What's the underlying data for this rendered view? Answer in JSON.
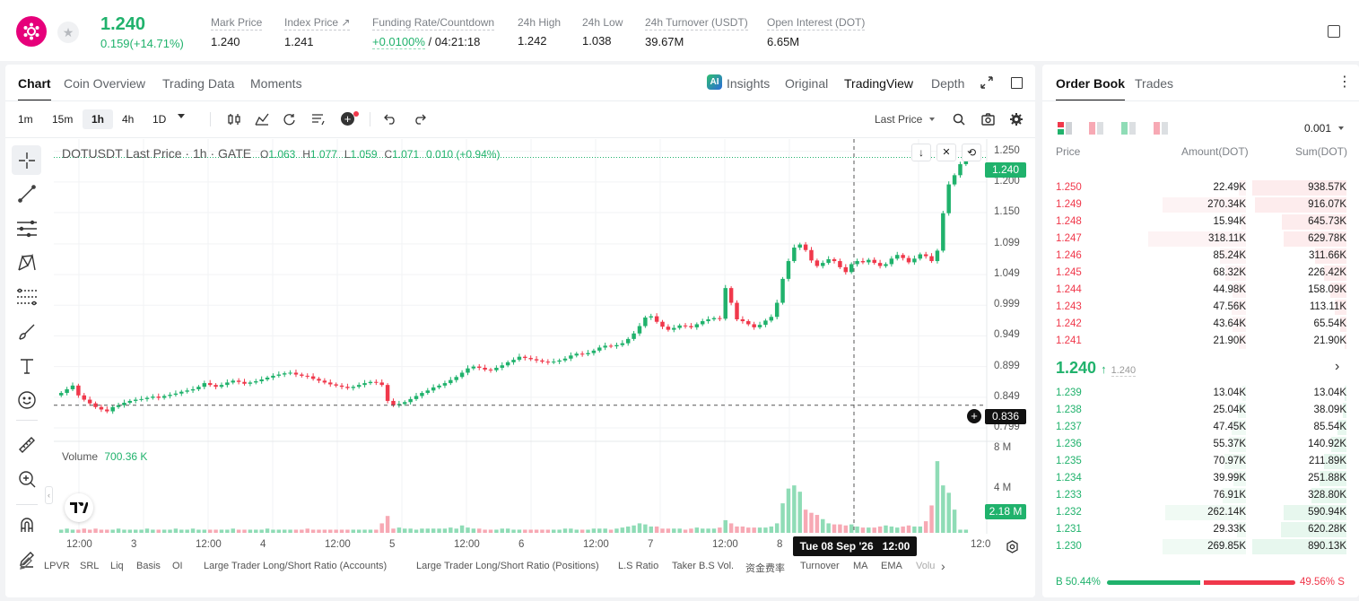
{
  "ticker": {
    "price": "1.240",
    "change": "0.159(+14.71%)"
  },
  "stats": [
    {
      "label": "Mark Price",
      "value": "1.240"
    },
    {
      "label": "Index Price ↗",
      "value": "1.241"
    },
    {
      "label": "Funding Rate/Countdown",
      "value_a": "+0.0100%",
      "value_b": "/ 04:21:18"
    },
    {
      "label": "24h High",
      "value": "1.242"
    },
    {
      "label": "24h Low",
      "value": "1.038"
    },
    {
      "label": "24h Turnover (USDT)",
      "value": "39.67M"
    },
    {
      "label": "Open Interest (DOT)",
      "value": "6.65M"
    }
  ],
  "chart_tabs": [
    "Chart",
    "Coin Overview",
    "Trading Data",
    "Moments"
  ],
  "view_tabs": {
    "insights": "Insights",
    "original": "Original",
    "tradingview": "TradingView",
    "depth": "Depth"
  },
  "intervals": [
    "1m",
    "15m",
    "1h",
    "4h",
    "1D"
  ],
  "active_interval": "1h",
  "price_type": "Last Price",
  "legend": {
    "title": "DOTUSDT Last Price · 1h · GATE",
    "o_label": "O",
    "o": "1.063",
    "h_label": "H",
    "h": "1.077",
    "l_label": "L",
    "l": "1.059",
    "c_label": "C",
    "c": "1.071",
    "chg": "0.010 (+0.94%)"
  },
  "volume_legend": {
    "label": "Volume",
    "value": "700.36 K"
  },
  "price_axis": [
    "1.250",
    "1.200",
    "1.150",
    "1.099",
    "1.049",
    "0.999",
    "0.949",
    "0.899",
    "0.849",
    "0.799"
  ],
  "volume_axis": [
    "8 M",
    "4 M"
  ],
  "time_axis": [
    "12:00",
    "3",
    "12:00",
    "4",
    "12:00",
    "5",
    "12:00",
    "6",
    "12:00",
    "7",
    "12:00",
    "8",
    "9",
    "12:0"
  ],
  "last_price_tag": "1.240",
  "crosshair_tag": "0.836",
  "volume_tag": "2.18 M",
  "crosshair_time": "Tue 08 Sep '26   12:00",
  "indicators": [
    "LPVR",
    "SRL",
    "Liq",
    "Basis",
    "OI",
    "Large Trader Long/Short Ratio (Accounts)",
    "Large Trader Long/Short Ratio (Positions)",
    "L.S Ratio",
    "Taker B.S Vol.",
    "资金费率",
    "Turnover",
    "MA",
    "EMA",
    "Volu"
  ],
  "order_book": {
    "tabs": [
      "Order Book",
      "Trades"
    ],
    "precision": "0.001",
    "headers": {
      "price": "Price",
      "amount": "Amount(DOT)",
      "sum": "Sum(DOT)"
    },
    "asks": [
      {
        "price": "1.250",
        "amount": "22.49K",
        "sum": "938.57K",
        "depth": 1.0
      },
      {
        "price": "1.249",
        "amount": "270.34K",
        "sum": "916.07K",
        "depth": 0.976
      },
      {
        "price": "1.248",
        "amount": "15.94K",
        "sum": "645.73K",
        "depth": 0.688
      },
      {
        "price": "1.247",
        "amount": "318.11K",
        "sum": "629.78K",
        "depth": 0.671
      },
      {
        "price": "1.246",
        "amount": "85.24K",
        "sum": "311.66K",
        "depth": 0.332
      },
      {
        "price": "1.245",
        "amount": "68.32K",
        "sum": "226.42K",
        "depth": 0.241
      },
      {
        "price": "1.244",
        "amount": "44.98K",
        "sum": "158.09K",
        "depth": 0.168
      },
      {
        "price": "1.243",
        "amount": "47.56K",
        "sum": "113.11K",
        "depth": 0.12
      },
      {
        "price": "1.242",
        "amount": "43.64K",
        "sum": "65.54K",
        "depth": 0.07
      },
      {
        "price": "1.241",
        "amount": "21.90K",
        "sum": "21.90K",
        "depth": 0.023
      }
    ],
    "last": {
      "price": "1.240",
      "arrow": "↑",
      "mark": "1.240"
    },
    "bids": [
      {
        "price": "1.239",
        "amount": "13.04K",
        "sum": "13.04K",
        "depth": 0.015
      },
      {
        "price": "1.238",
        "amount": "25.04K",
        "sum": "38.09K",
        "depth": 0.043
      },
      {
        "price": "1.237",
        "amount": "47.45K",
        "sum": "85.54K",
        "depth": 0.096
      },
      {
        "price": "1.236",
        "amount": "55.37K",
        "sum": "140.92K",
        "depth": 0.158
      },
      {
        "price": "1.235",
        "amount": "70.97K",
        "sum": "211.89K",
        "depth": 0.238
      },
      {
        "price": "1.234",
        "amount": "39.99K",
        "sum": "251.88K",
        "depth": 0.283
      },
      {
        "price": "1.233",
        "amount": "76.91K",
        "sum": "328.80K",
        "depth": 0.369
      },
      {
        "price": "1.232",
        "amount": "262.14K",
        "sum": "590.94K",
        "depth": 0.664
      },
      {
        "price": "1.231",
        "amount": "29.33K",
        "sum": "620.28K",
        "depth": 0.697
      },
      {
        "price": "1.230",
        "amount": "269.85K",
        "sum": "890.13K",
        "depth": 1.0
      }
    ],
    "ratio": {
      "buy_label": "B",
      "buy": "50.44%",
      "sell": "49.56%",
      "sell_label": "S",
      "buy_fraction": 0.5044
    }
  },
  "colors": {
    "up": "#20b26c",
    "down": "#f0384b",
    "up_vol": "#8fdcb6",
    "down_vol": "#f7a9b4"
  },
  "chart_data": {
    "type": "candlestick",
    "symbol": "DOTUSDT",
    "interval": "1h",
    "ylim": [
      0.78,
      1.27
    ],
    "closes": [
      0.856,
      0.862,
      0.868,
      0.852,
      0.845,
      0.839,
      0.833,
      0.829,
      0.826,
      0.833,
      0.836,
      0.84,
      0.843,
      0.845,
      0.846,
      0.848,
      0.85,
      0.848,
      0.851,
      0.853,
      0.855,
      0.858,
      0.86,
      0.862,
      0.866,
      0.872,
      0.869,
      0.866,
      0.869,
      0.873,
      0.876,
      0.874,
      0.871,
      0.873,
      0.875,
      0.878,
      0.881,
      0.884,
      0.886,
      0.888,
      0.889,
      0.886,
      0.884,
      0.883,
      0.879,
      0.876,
      0.873,
      0.87,
      0.868,
      0.866,
      0.864,
      0.866,
      0.869,
      0.872,
      0.874,
      0.873,
      0.869,
      0.843,
      0.836,
      0.838,
      0.841,
      0.846,
      0.851,
      0.856,
      0.86,
      0.865,
      0.868,
      0.872,
      0.877,
      0.882,
      0.889,
      0.896,
      0.899,
      0.897,
      0.894,
      0.893,
      0.897,
      0.901,
      0.906,
      0.91,
      0.915,
      0.913,
      0.911,
      0.909,
      0.907,
      0.906,
      0.907,
      0.909,
      0.912,
      0.917,
      0.92,
      0.919,
      0.921,
      0.925,
      0.93,
      0.933,
      0.932,
      0.934,
      0.937,
      0.944,
      0.953,
      0.965,
      0.979,
      0.981,
      0.972,
      0.964,
      0.959,
      0.962,
      0.966,
      0.965,
      0.963,
      0.968,
      0.973,
      0.976,
      0.978,
      0.977,
      1.027,
      1.003,
      0.976,
      0.973,
      0.968,
      0.963,
      0.967,
      0.974,
      0.98,
      1.003,
      1.042,
      1.071,
      1.093,
      1.098,
      1.089,
      1.072,
      1.063,
      1.068,
      1.074,
      1.071,
      1.061,
      1.053,
      1.066,
      1.071,
      1.069,
      1.073,
      1.068,
      1.063,
      1.066,
      1.075,
      1.081,
      1.076,
      1.069,
      1.075,
      1.082,
      1.079,
      1.071,
      1.088,
      1.149,
      1.196,
      1.211,
      1.229,
      1.24
    ],
    "volumes": [
      0.3,
      0.4,
      0.3,
      0.3,
      0.4,
      0.3,
      0.4,
      0.3,
      0.3,
      0.3,
      0.4,
      0.3,
      0.3,
      0.3,
      0.3,
      0.4,
      0.3,
      0.3,
      0.3,
      0.3,
      0.4,
      0.3,
      0.3,
      0.4,
      0.3,
      0.3,
      0.3,
      0.3,
      0.3,
      0.3,
      0.4,
      0.3,
      0.3,
      0.3,
      0.3,
      0.3,
      0.4,
      0.3,
      0.3,
      0.3,
      0.3,
      0.3,
      0.3,
      0.4,
      0.3,
      0.3,
      0.3,
      0.3,
      0.3,
      0.3,
      0.3,
      0.3,
      0.3,
      0.3,
      0.3,
      0.3,
      0.9,
      1.6,
      0.4,
      0.5,
      0.4,
      0.4,
      0.3,
      0.4,
      0.4,
      0.4,
      0.4,
      0.4,
      0.5,
      0.4,
      0.7,
      0.5,
      0.4,
      0.4,
      0.3,
      0.3,
      0.3,
      0.4,
      0.4,
      0.3,
      0.3,
      0.3,
      0.3,
      0.3,
      0.3,
      0.3,
      0.3,
      0.3,
      0.4,
      0.4,
      0.3,
      0.3,
      0.3,
      0.4,
      0.4,
      0.4,
      0.3,
      0.4,
      0.5,
      0.6,
      0.7,
      0.9,
      0.8,
      0.6,
      0.6,
      0.4,
      0.4,
      0.4,
      0.4,
      0.3,
      0.4,
      0.5,
      0.4,
      0.4,
      0.4,
      0.5,
      1.2,
      0.9,
      0.6,
      0.6,
      0.5,
      0.5,
      0.5,
      0.5,
      0.6,
      0.9,
      2.8,
      4.2,
      4.5,
      3.9,
      2.2,
      1.9,
      1.7,
      1.3,
      0.9,
      0.8,
      0.8,
      0.7,
      0.8,
      0.6,
      0.5,
      0.5,
      0.5,
      0.6,
      0.7,
      0.6,
      0.5,
      0.6,
      0.7,
      0.6,
      0.6,
      1.1,
      2.6,
      6.8,
      4.5,
      3.8,
      2.2
    ]
  }
}
